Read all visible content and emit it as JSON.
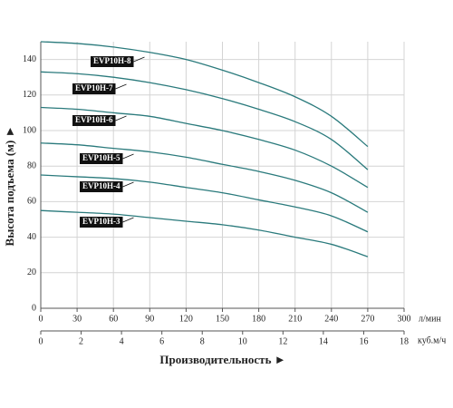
{
  "chart_data": {
    "type": "line",
    "ylabel": "Высота подъема (м) ►",
    "xlabel": "Производительность ►",
    "xunit": "л/мин",
    "x2unit": "куб.м/ч",
    "x": [
      0,
      30,
      60,
      90,
      120,
      150,
      180,
      210,
      240,
      270
    ],
    "xlim": [
      0,
      300
    ],
    "xticks": [
      0,
      30,
      60,
      90,
      120,
      150,
      180,
      210,
      240,
      270,
      300
    ],
    "x2lim": [
      0,
      18
    ],
    "x2ticks": [
      0,
      2,
      4,
      6,
      8,
      10,
      12,
      14,
      16,
      18
    ],
    "ylim": [
      0,
      150
    ],
    "yticks": [
      0,
      20,
      40,
      60,
      80,
      100,
      120,
      140
    ],
    "grid": true,
    "series": [
      {
        "name": "EVP10H-8",
        "color": "#2a7a7c",
        "values": [
          150,
          149,
          147,
          144,
          140,
          134,
          127,
          119,
          108,
          91
        ]
      },
      {
        "name": "EVP10H-7",
        "color": "#2a7a7c",
        "values": [
          133,
          132,
          130,
          127,
          123,
          118,
          112,
          105,
          95,
          78
        ]
      },
      {
        "name": "EVP10H-6",
        "color": "#2a7a7c",
        "values": [
          113,
          112,
          110,
          108,
          104,
          100,
          95,
          89,
          80,
          68
        ]
      },
      {
        "name": "EVP10H-5",
        "color": "#2a7a7c",
        "values": [
          93,
          92,
          90,
          88,
          85,
          81,
          77,
          72,
          65,
          54
        ]
      },
      {
        "name": "EVP10H-4",
        "color": "#2a7a7c",
        "values": [
          75,
          74,
          73,
          71,
          68,
          65,
          61,
          57,
          52,
          43
        ]
      },
      {
        "name": "EVP10H-3",
        "color": "#2a7a7c",
        "values": [
          55,
          54,
          53,
          51,
          49,
          47,
          44,
          40,
          36,
          29
        ]
      }
    ]
  }
}
